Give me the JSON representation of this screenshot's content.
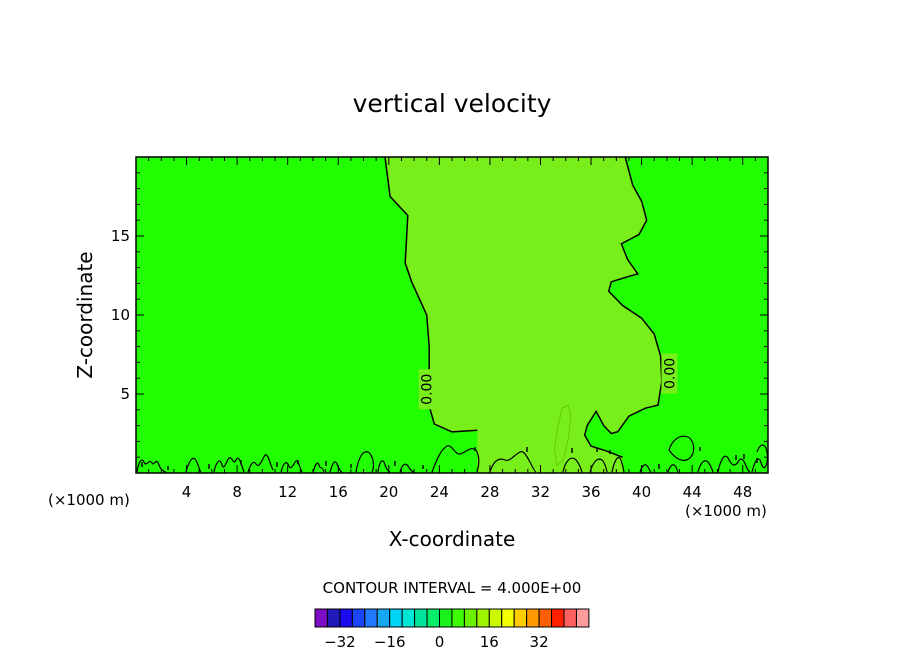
{
  "chart_data": {
    "type": "contour",
    "title": "vertical velocity",
    "xlabel": "X-coordinate",
    "ylabel": "Z-coordinate",
    "x_unit_left": "(×1000 m)",
    "x_unit_right": "(×1000 m)",
    "xlim": [
      0,
      50
    ],
    "ylim": [
      0,
      20
    ],
    "xticks": [
      4,
      8,
      12,
      16,
      20,
      24,
      28,
      32,
      36,
      40,
      44,
      48
    ],
    "yticks": [
      5,
      10,
      15
    ],
    "contour_labels": [
      {
        "text": "0.00",
        "x": 23.0,
        "z": 5.3
      },
      {
        "text": "0.00",
        "x": 42.2,
        "z": 6.3
      }
    ],
    "zero_contour_west": [
      [
        19.7,
        20
      ],
      [
        20.1,
        17.5
      ],
      [
        21.5,
        16.3
      ],
      [
        21.4,
        14.8
      ],
      [
        21.3,
        13.3
      ],
      [
        21.8,
        12.1
      ],
      [
        23.0,
        10.0
      ],
      [
        23.2,
        8.0
      ],
      [
        23.2,
        6.5
      ],
      [
        23.0,
        4.8
      ],
      [
        23.6,
        3.1
      ],
      [
        25.0,
        2.6
      ],
      [
        27.0,
        2.7
      ]
    ],
    "zero_contour_east": [
      [
        38.7,
        20
      ],
      [
        39.3,
        18.2
      ],
      [
        40.0,
        17.2
      ],
      [
        40.4,
        16.0
      ],
      [
        39.8,
        15.1
      ],
      [
        38.4,
        14.5
      ],
      [
        38.9,
        13.5
      ],
      [
        39.7,
        12.6
      ],
      [
        38.8,
        12.4
      ],
      [
        37.6,
        12.1
      ],
      [
        37.4,
        11.5
      ],
      [
        38.5,
        10.6
      ],
      [
        40.0,
        9.8
      ],
      [
        41.0,
        8.8
      ],
      [
        41.5,
        7.4
      ],
      [
        41.6,
        5.8
      ],
      [
        41.3,
        4.3
      ],
      [
        40.3,
        4.1
      ],
      [
        39.0,
        3.6
      ],
      [
        38.1,
        2.6
      ],
      [
        37.6,
        2.5
      ],
      [
        37.0,
        3.0
      ],
      [
        36.4,
        3.9
      ],
      [
        35.7,
        3.0
      ],
      [
        35.5,
        2.4
      ],
      [
        36.0,
        1.7
      ],
      [
        37.2,
        1.4
      ],
      [
        38.5,
        1.0
      ]
    ],
    "positive_cell": [
      [
        33.3,
        0.5
      ],
      [
        33.1,
        1.5
      ],
      [
        33.4,
        3.0
      ],
      [
        33.7,
        4.1
      ],
      [
        34.2,
        4.3
      ],
      [
        34.4,
        3.6
      ],
      [
        34.2,
        2.2
      ],
      [
        33.8,
        0.8
      ],
      [
        33.3,
        0.5
      ]
    ],
    "colors": {
      "background_level": "#22ff00",
      "positive_level": "#78ee1a",
      "positive_cell_outline": "#66cc00",
      "contour_line": "#000000"
    },
    "contour_interval_label": "CONTOUR INTERVAL = 4.000E+00",
    "colorbar": {
      "colors": [
        "#7d0dc5",
        "#1f1ab8",
        "#1b0cef",
        "#1c45f8",
        "#2179ff",
        "#16a7f4",
        "#00d4f4",
        "#00e6d4",
        "#00e39c",
        "#00ee6a",
        "#19f21b",
        "#3dfb00",
        "#6af000",
        "#9ef400",
        "#caf900",
        "#f3ff00",
        "#ffcc00",
        "#ff9900",
        "#ff5f00",
        "#ff2000",
        "#ff6060",
        "#ff9d9d"
      ],
      "tick_labels": [
        {
          "text": "−32",
          "index": 2
        },
        {
          "text": "−16",
          "index": 6
        },
        {
          "text": "0",
          "index": 10
        },
        {
          "text": "16",
          "index": 14
        },
        {
          "text": "32",
          "index": 18
        }
      ]
    }
  }
}
